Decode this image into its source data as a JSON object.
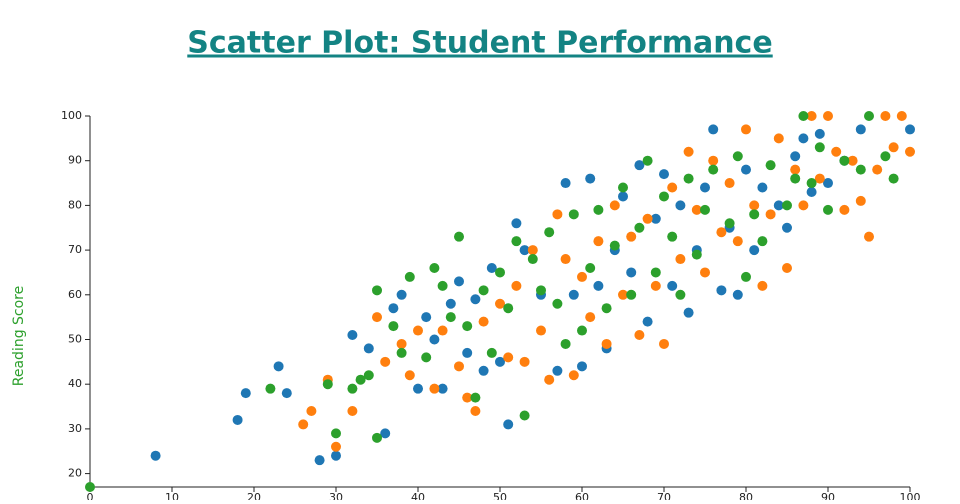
{
  "chart_data": {
    "type": "scatter",
    "title": "Scatter Plot: Student Performance",
    "y_label": "Reading Score",
    "xlim": [
      0,
      100
    ],
    "xticks": [
      0,
      10,
      20,
      30,
      40,
      50,
      60,
      70,
      80,
      90,
      100
    ],
    "ylim": [
      17,
      100
    ],
    "yticks": [
      20,
      30,
      40,
      50,
      60,
      70,
      80,
      90,
      100
    ],
    "series": [
      {
        "color": "#1f77b4",
        "x": [
          8,
          18,
          19,
          23,
          24,
          28,
          30,
          32,
          34,
          36,
          37,
          38,
          40,
          41,
          42,
          43,
          44,
          45,
          46,
          47,
          48,
          49,
          50,
          51,
          52,
          53,
          55,
          57,
          58,
          59,
          60,
          61,
          62,
          63,
          64,
          65,
          66,
          67,
          68,
          69,
          70,
          71,
          72,
          73,
          74,
          75,
          76,
          77,
          78,
          79,
          80,
          81,
          82,
          84,
          85,
          86,
          87,
          88,
          89,
          90,
          92,
          94,
          100
        ],
        "values": [
          24,
          32,
          38,
          44,
          38,
          23,
          24,
          51,
          48,
          29,
          57,
          60,
          39,
          55,
          50,
          39,
          58,
          63,
          47,
          59,
          43,
          66,
          45,
          31,
          76,
          70,
          60,
          43,
          85,
          60,
          44,
          86,
          62,
          48,
          70,
          82,
          65,
          89,
          54,
          77,
          87,
          62,
          80,
          56,
          70,
          84,
          97,
          61,
          75,
          60,
          88,
          70,
          84,
          80,
          75,
          91,
          95,
          83,
          96,
          85,
          90,
          97,
          97
        ]
      },
      {
        "color": "#ff7f0e",
        "x": [
          26,
          27,
          29,
          30,
          32,
          35,
          36,
          38,
          39,
          40,
          42,
          43,
          45,
          46,
          47,
          48,
          50,
          51,
          52,
          53,
          54,
          55,
          56,
          57,
          58,
          59,
          60,
          61,
          62,
          63,
          64,
          65,
          66,
          67,
          68,
          69,
          70,
          71,
          72,
          73,
          74,
          75,
          76,
          77,
          78,
          79,
          80,
          81,
          82,
          83,
          84,
          85,
          86,
          87,
          88,
          89,
          90,
          91,
          92,
          93,
          94,
          95,
          96,
          97,
          98,
          99,
          100
        ],
        "values": [
          31,
          34,
          41,
          26,
          34,
          55,
          45,
          49,
          42,
          52,
          39,
          52,
          44,
          37,
          34,
          54,
          58,
          46,
          62,
          45,
          70,
          52,
          41,
          78,
          68,
          42,
          64,
          55,
          72,
          49,
          80,
          60,
          73,
          51,
          77,
          62,
          49,
          84,
          68,
          92,
          79,
          65,
          90,
          74,
          85,
          72,
          97,
          80,
          62,
          78,
          95,
          66,
          88,
          80,
          100,
          86,
          100,
          92,
          79,
          90,
          81,
          73,
          88,
          100,
          93,
          100,
          92
        ]
      },
      {
        "color": "#2ca02c",
        "x": [
          0,
          22,
          29,
          30,
          32,
          33,
          34,
          35,
          35,
          37,
          38,
          39,
          41,
          42,
          43,
          44,
          45,
          46,
          47,
          48,
          49,
          50,
          51,
          52,
          53,
          54,
          55,
          56,
          57,
          58,
          59,
          60,
          61,
          62,
          63,
          64,
          65,
          66,
          67,
          68,
          69,
          70,
          71,
          72,
          73,
          74,
          75,
          76,
          78,
          79,
          80,
          81,
          82,
          83,
          85,
          86,
          87,
          88,
          89,
          90,
          92,
          94,
          95,
          97,
          98
        ],
        "values": [
          17,
          39,
          40,
          29,
          39,
          41,
          42,
          28,
          61,
          53,
          47,
          64,
          46,
          66,
          62,
          55,
          73,
          53,
          37,
          61,
          47,
          65,
          57,
          72,
          33,
          68,
          61,
          74,
          58,
          49,
          78,
          52,
          66,
          79,
          57,
          71,
          84,
          60,
          75,
          90,
          65,
          82,
          73,
          60,
          86,
          69,
          79,
          88,
          76,
          91,
          64,
          78,
          72,
          89,
          80,
          86,
          100,
          85,
          93,
          79,
          90,
          88,
          100,
          91,
          86
        ]
      }
    ]
  }
}
